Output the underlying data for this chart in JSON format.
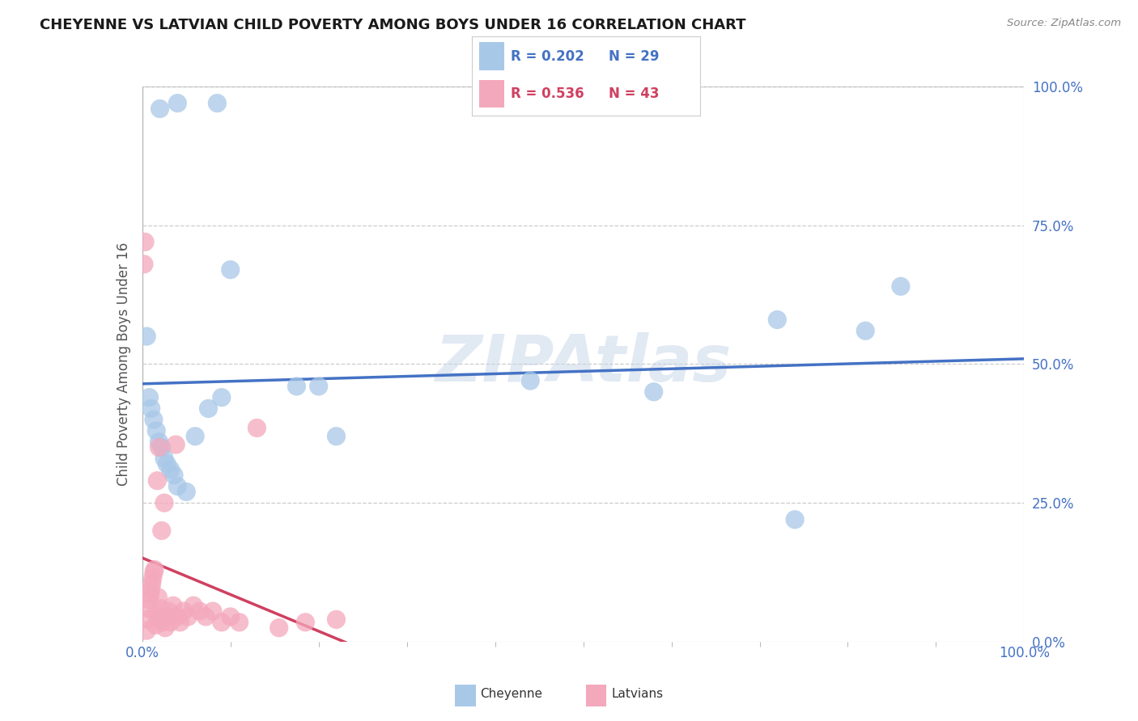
{
  "title": "CHEYENNE VS LATVIAN CHILD POVERTY AMONG BOYS UNDER 16 CORRELATION CHART",
  "source": "Source: ZipAtlas.com",
  "ylabel": "Child Poverty Among Boys Under 16",
  "watermark": "ZIPAtlas",
  "cheyenne_R": 0.202,
  "cheyenne_N": 29,
  "latvian_R": 0.536,
  "latvian_N": 43,
  "cheyenne_color": "#a8c8e8",
  "latvian_color": "#f4a8bc",
  "cheyenne_line_color": "#4472c4",
  "latvian_line_color": "#d04060",
  "cheyenne_x": [
    0.02,
    0.04,
    0.085,
    0.005,
    0.008,
    0.01,
    0.013,
    0.016,
    0.019,
    0.022,
    0.025,
    0.028,
    0.032,
    0.036,
    0.04,
    0.05,
    0.06,
    0.075,
    0.09,
    0.1,
    0.175,
    0.2,
    0.22,
    0.44,
    0.58,
    0.72,
    0.74,
    0.82,
    0.86
  ],
  "cheyenne_y": [
    0.96,
    0.97,
    0.97,
    0.55,
    0.44,
    0.42,
    0.4,
    0.38,
    0.36,
    0.35,
    0.33,
    0.32,
    0.31,
    0.3,
    0.28,
    0.27,
    0.37,
    0.42,
    0.44,
    0.67,
    0.46,
    0.46,
    0.37,
    0.47,
    0.45,
    0.58,
    0.22,
    0.56,
    0.64
  ],
  "latvian_x": [
    0.002,
    0.003,
    0.005,
    0.006,
    0.007,
    0.008,
    0.009,
    0.01,
    0.011,
    0.012,
    0.013,
    0.014,
    0.015,
    0.016,
    0.017,
    0.018,
    0.019,
    0.02,
    0.021,
    0.022,
    0.023,
    0.025,
    0.026,
    0.028,
    0.03,
    0.032,
    0.035,
    0.038,
    0.04,
    0.043,
    0.047,
    0.052,
    0.058,
    0.065,
    0.072,
    0.08,
    0.09,
    0.1,
    0.11,
    0.13,
    0.155,
    0.185,
    0.22
  ],
  "latvian_y": [
    0.68,
    0.72,
    0.02,
    0.04,
    0.06,
    0.075,
    0.085,
    0.095,
    0.105,
    0.115,
    0.125,
    0.13,
    0.03,
    0.05,
    0.29,
    0.08,
    0.35,
    0.04,
    0.06,
    0.2,
    0.035,
    0.25,
    0.025,
    0.045,
    0.055,
    0.035,
    0.065,
    0.355,
    0.045,
    0.035,
    0.055,
    0.045,
    0.065,
    0.055,
    0.045,
    0.055,
    0.035,
    0.045,
    0.035,
    0.385,
    0.025,
    0.035,
    0.04
  ],
  "xlim": [
    0.0,
    1.0
  ],
  "ylim": [
    0.0,
    1.0
  ],
  "xtick_minor_positions": [
    0.1,
    0.2,
    0.3,
    0.4,
    0.5,
    0.6,
    0.7,
    0.8,
    0.9
  ],
  "grid_color": "#cccccc",
  "background_color": "#ffffff",
  "title_color": "#1a1a1a",
  "tick_color": "#4472c4",
  "legend_color": "#4472c4"
}
